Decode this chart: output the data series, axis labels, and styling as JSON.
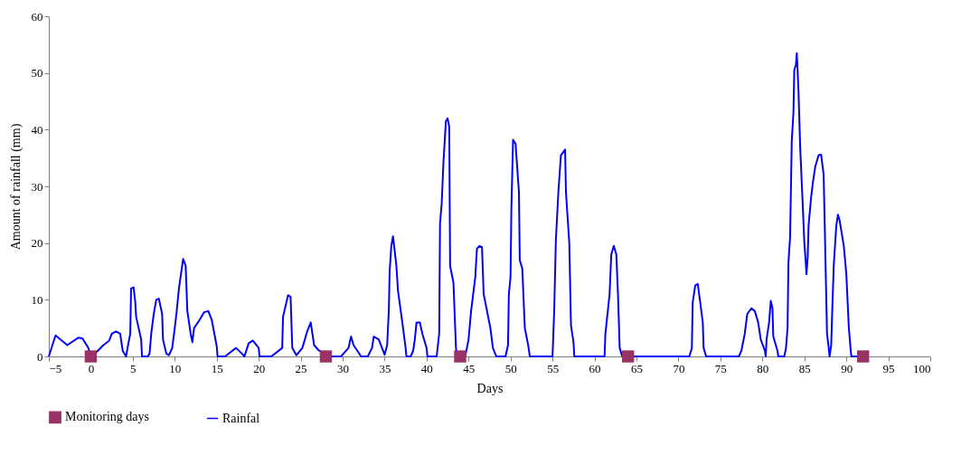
{
  "chart_data": {
    "type": "line",
    "xlabel": "Days",
    "ylabel": "Amount of rainfall (mm)",
    "xlim": [
      -5,
      100
    ],
    "xticks": [
      -5,
      0,
      5,
      10,
      15,
      20,
      25,
      30,
      35,
      40,
      45,
      50,
      55,
      60,
      65,
      70,
      75,
      80,
      85,
      90,
      95,
      100
    ],
    "ylim": [
      0,
      60
    ],
    "yticks": [
      0,
      10,
      20,
      30,
      40,
      50,
      60
    ],
    "grid": false,
    "legend": "bottom",
    "series": [
      {
        "name": "Monitoring days",
        "type": "scatter",
        "marker": "square",
        "color": "#993366",
        "x": [
          0,
          28,
          44,
          64,
          92
        ],
        "values": [
          0,
          0,
          0,
          0,
          0
        ]
      },
      {
        "name": "Rainfal",
        "marker": "none",
        "color": "#0000ff",
        "x": [
          -5,
          -4.2,
          -2.8,
          -1.5,
          -1,
          -0.3,
          0,
          0.5,
          1.5,
          2.2,
          2.5,
          3,
          3.5,
          3.8,
          4.2,
          4.5,
          4.7,
          4.8,
          5.1,
          5.3,
          5.4,
          6,
          6.1,
          6.8,
          7,
          7.2,
          7.5,
          7.8,
          8.1,
          8.5,
          8.6,
          9,
          9.3,
          9.7,
          10,
          10.2,
          10.5,
          11,
          11.3,
          11.5,
          11.9,
          12.1,
          12.3,
          12.9,
          13.5,
          14,
          14.4,
          15,
          15.1,
          16,
          17.3,
          18,
          18.3,
          18.8,
          19.3,
          20,
          20.1,
          21.5,
          22.8,
          22.9,
          23.5,
          23.8,
          24,
          24.5,
          25.2,
          25.8,
          26.2,
          26.6,
          27.2,
          28.5,
          29.8,
          30.7,
          31,
          31.3,
          32.2,
          33,
          33.5,
          33.7,
          34.3,
          35,
          35.3,
          35.5,
          35.6,
          35.8,
          36,
          36.4,
          36.6,
          37.2,
          37.5,
          37.6,
          38.1,
          38.4,
          38.6,
          38.8,
          39.2,
          39.5,
          40,
          40.1,
          41.2,
          41.5,
          41.6,
          41.8,
          42,
          42.3,
          42.5,
          42.7,
          42.8,
          43.2,
          43.5,
          43.6,
          44.6,
          45,
          45.3,
          45.8,
          46,
          46.3,
          46.6,
          46.8,
          47.6,
          47.9,
          48.3,
          49.4,
          49.7,
          49.8,
          50,
          50.1,
          50.3,
          50.6,
          51,
          51.1,
          51.4,
          51.7,
          52.1,
          52.3,
          55,
          55.2,
          55.4,
          55.7,
          56,
          56.5,
          56.6,
          57,
          57.2,
          57.5,
          57.6,
          61.2,
          61.3,
          61.8,
          62,
          62.3,
          62.6,
          62.8,
          63,
          63.3,
          71.3,
          71.6,
          71.7,
          72,
          72.3,
          72.6,
          72.9,
          73,
          73.3,
          77.2,
          77.5,
          77.9,
          78.2,
          78.7,
          79.1,
          79.5,
          79.8,
          80.3,
          80.4,
          80.5,
          80.8,
          81,
          81.2,
          81.3,
          81.8,
          81.9,
          82.6,
          82.8,
          83,
          83.1,
          83.3,
          83.5,
          83.7,
          83.8,
          84,
          84.1,
          84.3,
          84.5,
          84.8,
          85,
          85.15,
          85.25,
          85.4,
          85.5,
          85.8,
          86,
          86.3,
          86.7,
          87,
          87.3,
          87.4,
          87.7,
          87.9,
          88,
          88.2,
          88.3,
          88.5,
          88.8,
          89,
          89.2,
          89.7,
          90,
          90.3,
          90.5,
          90.6,
          92.5
        ],
        "values": [
          0,
          3.7,
          2,
          3.3,
          3.2,
          1.5,
          0.2,
          0.5,
          2,
          2.8,
          4,
          4.4,
          4,
          1,
          0,
          2.5,
          4,
          12,
          12.2,
          9.5,
          7,
          3,
          0,
          0,
          0.5,
          4,
          7.5,
          10,
          10.2,
          7.5,
          3,
          0.5,
          0.2,
          1.5,
          5,
          7.5,
          12,
          17.2,
          16,
          8,
          4,
          2.5,
          5,
          6.3,
          7.8,
          8,
          6.5,
          1.8,
          0,
          0,
          1.5,
          0.5,
          0,
          2.3,
          2.8,
          1.5,
          0,
          0,
          1.5,
          7,
          10.8,
          10.5,
          1.5,
          0.2,
          1.5,
          4.5,
          6,
          2,
          1,
          0,
          0,
          1.5,
          3.5,
          2,
          0,
          0,
          1.5,
          3.5,
          3,
          0.3,
          2,
          8,
          15,
          19.5,
          21.2,
          16,
          11.5,
          5,
          1.5,
          0,
          0,
          1,
          3,
          6,
          6,
          4,
          1.5,
          0,
          0,
          4,
          23.5,
          27,
          34,
          41.5,
          42,
          40.5,
          16,
          13,
          1.5,
          0,
          0,
          3,
          8,
          14,
          19,
          19.5,
          19.3,
          11,
          5,
          1.5,
          0,
          0,
          2,
          11,
          14,
          26,
          38.2,
          37.5,
          29,
          17,
          15.5,
          5,
          2,
          0,
          0,
          8,
          20.5,
          29,
          35.5,
          36.5,
          29,
          20,
          5.5,
          2.5,
          0,
          0,
          4,
          11,
          18,
          19.5,
          18,
          11,
          1.5,
          0,
          0,
          1.5,
          9.5,
          12.5,
          12.8,
          9.5,
          6,
          1.5,
          0,
          0,
          1,
          4,
          7.5,
          8.5,
          8,
          6,
          3,
          1,
          0,
          3,
          6,
          9.8,
          8.5,
          3.5,
          1,
          0,
          0,
          1.3,
          5,
          16.5,
          21,
          38,
          43,
          50.5,
          51.5,
          53.5,
          47,
          37,
          27,
          20,
          17,
          14.5,
          17.5,
          23,
          28,
          30.5,
          33.5,
          35.5,
          35.6,
          32,
          25,
          4,
          1.5,
          0,
          2,
          7,
          16,
          23,
          25,
          24,
          19.5,
          14.5,
          5,
          1.5,
          0,
          0
        ]
      }
    ]
  }
}
